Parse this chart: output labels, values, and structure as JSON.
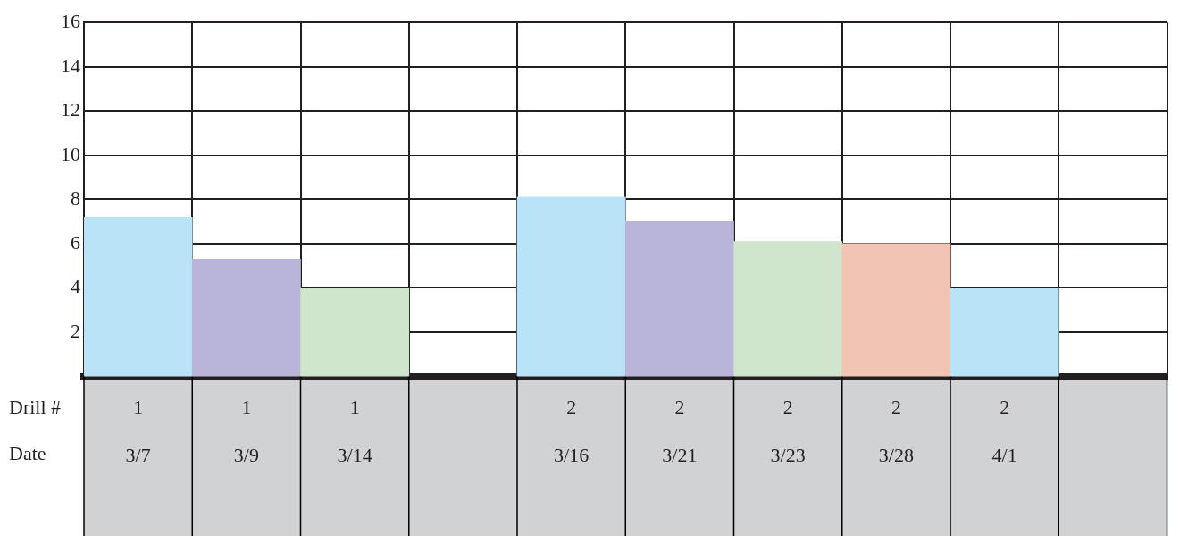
{
  "chart_data": {
    "type": "bar",
    "xlabel": "Date",
    "categories": [
      "3/7",
      "3/9",
      "3/14",
      null,
      "3/16",
      "3/21",
      "3/23",
      "3/28",
      "4/1",
      null
    ],
    "values": [
      7.2,
      5.3,
      4,
      null,
      8.1,
      7,
      6.1,
      6,
      4,
      null
    ],
    "colors": [
      "#b9e4f7",
      "#b9b5da",
      "#cfe5cc",
      "#ffffff",
      "#b9e4f7",
      "#b9b5da",
      "#cfe5cc",
      "#f2c4b3",
      "#b9e4f7",
      "#ffffff"
    ],
    "ylim": [
      0,
      16
    ],
    "yticks": [
      2,
      4,
      6,
      8,
      10,
      12,
      14,
      16
    ],
    "grid": true,
    "annotations": [
      "Drill #",
      "1",
      "1",
      "1",
      "2",
      "2",
      "2",
      "2",
      "2"
    ]
  }
}
